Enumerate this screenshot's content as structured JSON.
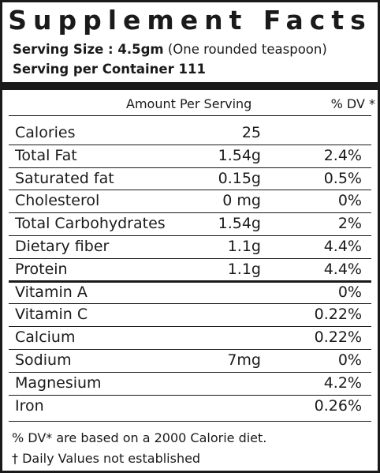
{
  "title": "Supplement Facts",
  "serving_size": {
    "label": "Serving Size : 4.5gm",
    "note": "(One rounded teaspoon)"
  },
  "servings_per_container": "Serving per Container 111",
  "header": {
    "amount": "Amount Per Serving",
    "dv": "% DV *"
  },
  "nutrients": [
    {
      "name": "Calories",
      "amount": "25",
      "dv": ""
    },
    {
      "name": "Total Fat",
      "amount": "1.54g",
      "dv": "2.4%"
    },
    {
      "name": "Saturated fat",
      "amount": "0.15g",
      "dv": "0.5%"
    },
    {
      "name": "Cholesterol",
      "amount": "0 mg",
      "dv": "0%"
    },
    {
      "name": "Total Carbohydrates",
      "amount": "1.54g",
      "dv": "2%"
    },
    {
      "name": "Dietary fiber",
      "amount": "1.1g",
      "dv": "4.4%"
    },
    {
      "name": "Protein",
      "amount": "1.1g",
      "dv": "4.4%"
    }
  ],
  "vitamins": [
    {
      "name": "Vitamin A",
      "amount": "",
      "dv": "0%"
    },
    {
      "name": "Vitamin C",
      "amount": "",
      "dv": "0.22%"
    },
    {
      "name": "Calcium",
      "amount": "",
      "dv": "0.22%"
    },
    {
      "name": "Sodium",
      "amount": "7mg",
      "dv": "0%"
    },
    {
      "name": "Magnesium",
      "amount": "",
      "dv": "4.2%"
    },
    {
      "name": "Iron",
      "amount": "",
      "dv": "0.26%"
    }
  ],
  "footnotes": [
    "% DV* are based on a 2000 Calorie diet.",
    "† Daily Values not established"
  ]
}
